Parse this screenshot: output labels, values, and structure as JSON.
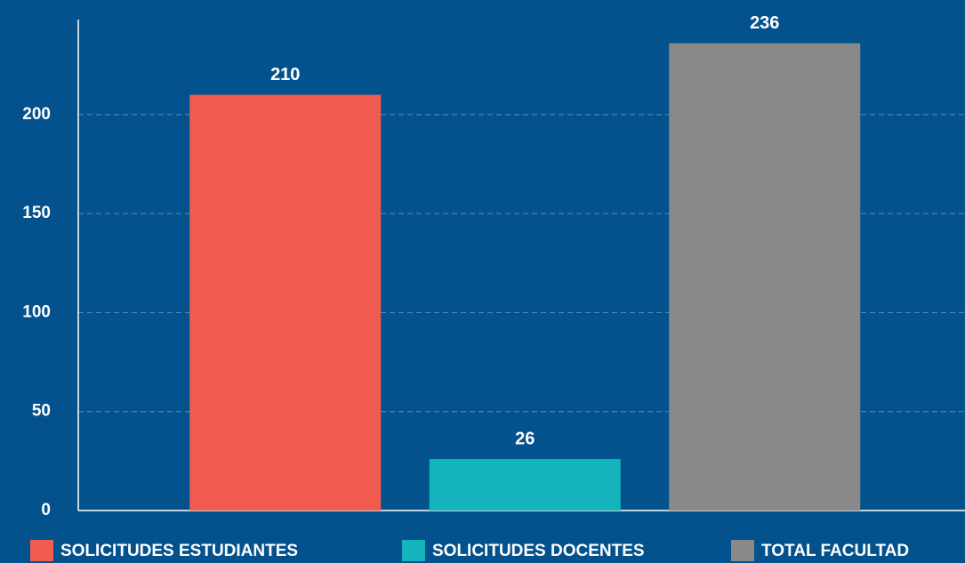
{
  "chart_data": {
    "type": "bar",
    "categories": [
      "SOLICITUDES ESTUDIANTES",
      "SOLICITUDES DOCENTES",
      "TOTAL FACULTAD"
    ],
    "values": [
      210,
      26,
      236
    ],
    "colors": [
      "#f25c50",
      "#14b4bc",
      "#898989"
    ],
    "ylim": [
      0,
      248
    ],
    "yticks": [
      0,
      50,
      100,
      150,
      200
    ],
    "grid": true,
    "legend": "bottom"
  }
}
